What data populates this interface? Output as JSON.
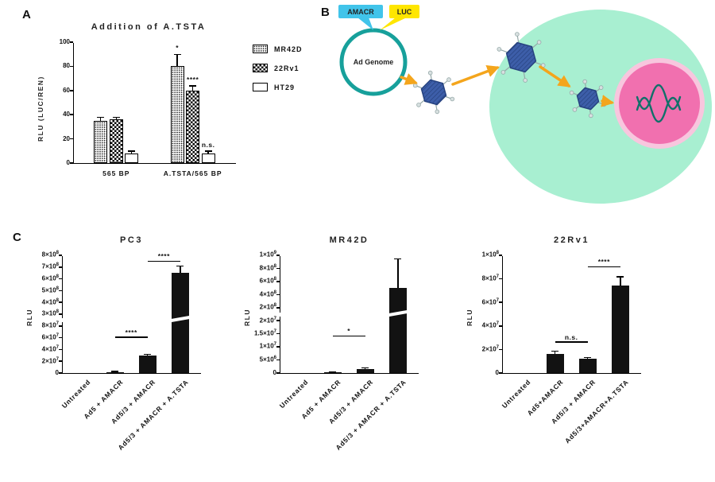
{
  "panels": {
    "a_label": "A",
    "b_label": "B",
    "c_label": "C"
  },
  "diagram": {
    "amacr_tag": "AMACR",
    "luc_tag": "LUC",
    "genome_label": "Ad Genome",
    "colors": {
      "amacr_bg": "#41c4ea",
      "luc_bg": "#ffe600",
      "genome_ring": "#17a09b",
      "cell_fill": "#a8efd1",
      "nucleus_fill": "#f170af",
      "nucleus_ring": "#f8c6de",
      "virus_fill": "#3d5ea9",
      "virus_hatch": "#26427f",
      "arrow": "#f4a51c",
      "dna": "#11706a",
      "stub_knob": "#d8e0e0",
      "stub_line": "#95a8a8"
    }
  },
  "chart_data": [
    {
      "type": "grouped_bar",
      "title": "Addition of A.TSTA",
      "ylabel": "RLU (LUC/REN)",
      "ylim": [
        0,
        100
      ],
      "yticks": [
        0,
        20,
        40,
        60,
        80,
        100
      ],
      "categories": [
        "565 BP",
        "A.TSTA/565 BP"
      ],
      "series": [
        {
          "name": "MR42D",
          "pattern": "dots",
          "values": [
            35,
            80
          ],
          "errors": [
            3,
            10
          ]
        },
        {
          "name": "22Rv1",
          "pattern": "check",
          "values": [
            36,
            60
          ],
          "errors": [
            2,
            4
          ]
        },
        {
          "name": "HT29",
          "pattern": "plain",
          "values": [
            8,
            8
          ],
          "errors": [
            2,
            2
          ]
        }
      ],
      "bar_annotations": [
        {
          "group": 1,
          "series": 0,
          "text": "*"
        },
        {
          "group": 1,
          "series": 1,
          "text": "****"
        },
        {
          "group": 1,
          "series": 2,
          "text": "n.s."
        }
      ]
    },
    {
      "type": "bar",
      "title": "PC3",
      "ylabel": "RLU",
      "categories": [
        "Untreated",
        "Ad5 + AMACR",
        "Ad5/3 + AMACR",
        "Ad5/3 + AMACR + A.TSTA"
      ],
      "values": [
        0,
        2000000,
        30000000,
        650000000
      ],
      "errors": [
        0,
        900000,
        2500000,
        60000000
      ],
      "ticks": [
        {
          "m": "0",
          "e": "",
          "v": 0
        },
        {
          "m": "2×10",
          "e": "7",
          "v": 20000000
        },
        {
          "m": "4×10",
          "e": "7",
          "v": 40000000
        },
        {
          "m": "6×10",
          "e": "7",
          "v": 60000000
        },
        {
          "m": "8×10",
          "e": "7",
          "v": 80000000
        },
        {
          "m": "3×10",
          "e": "8",
          "v": 300000000
        },
        {
          "m": "4×10",
          "e": "8",
          "v": 400000000
        },
        {
          "m": "5×10",
          "e": "8",
          "v": 500000000
        },
        {
          "m": "6×10",
          "e": "8",
          "v": 600000000
        },
        {
          "m": "7×10",
          "e": "8",
          "v": 700000000
        },
        {
          "m": "8×10",
          "e": "8",
          "v": 800000000
        }
      ],
      "break_frac": 0.45,
      "annotations": [
        {
          "from": 1,
          "to": 2,
          "text": "****",
          "v": 60000000
        },
        {
          "from": 2,
          "to": 3,
          "text": "****",
          "v": 745000000
        }
      ]
    },
    {
      "type": "bar",
      "title": "MR42D",
      "ylabel": "RLU",
      "categories": [
        "Untreated",
        "Ad5 + AMACR",
        "Ad5/3 + AMACR",
        "Ad5/3 + AMACR + A.TSTA"
      ],
      "values": [
        0,
        300000,
        1500000,
        500000000
      ],
      "errors": [
        0,
        100000,
        600000,
        450000000
      ],
      "ticks": [
        {
          "m": "0",
          "e": "",
          "v": 0
        },
        {
          "m": "5×10",
          "e": "6",
          "v": 5000000
        },
        {
          "m": "1×10",
          "e": "7",
          "v": 10000000
        },
        {
          "m": "1.5×10",
          "e": "7",
          "v": 15000000
        },
        {
          "m": "2×10",
          "e": "7",
          "v": 20000000
        },
        {
          "m": "2×10",
          "e": "8",
          "v": 200000000
        },
        {
          "m": "4×10",
          "e": "8",
          "v": 400000000
        },
        {
          "m": "6×10",
          "e": "8",
          "v": 600000000
        },
        {
          "m": "8×10",
          "e": "8",
          "v": 800000000
        },
        {
          "m": "1×10",
          "e": "9",
          "v": 1000000000
        }
      ],
      "break_frac": 0.5,
      "annotations": [
        {
          "from": 1,
          "to": 2,
          "text": "*",
          "v": 14000000
        }
      ]
    },
    {
      "type": "bar",
      "title": "22Rv1",
      "ylabel": "RLU",
      "categories": [
        "Untreated",
        "Ad5+AMACR",
        "Ad5/3 + AMACR",
        "Ad5/3+AMACR+A.TSTA"
      ],
      "values": [
        0,
        16000000,
        12000000,
        74000000
      ],
      "errors": [
        0,
        3000000,
        1500000,
        8000000
      ],
      "ticks": [
        {
          "m": "0",
          "e": "",
          "v": 0
        },
        {
          "m": "2×10",
          "e": "7",
          "v": 20000000
        },
        {
          "m": "4×10",
          "e": "7",
          "v": 40000000
        },
        {
          "m": "6×10",
          "e": "7",
          "v": 60000000
        },
        {
          "m": "8×10",
          "e": "7",
          "v": 80000000
        },
        {
          "m": "1×10",
          "e": "8",
          "v": 100000000
        }
      ],
      "annotations": [
        {
          "from": 1,
          "to": 2,
          "text": "n.s.",
          "v": 26000000
        },
        {
          "from": 2,
          "to": 3,
          "text": "****",
          "v": 90000000
        }
      ]
    }
  ]
}
